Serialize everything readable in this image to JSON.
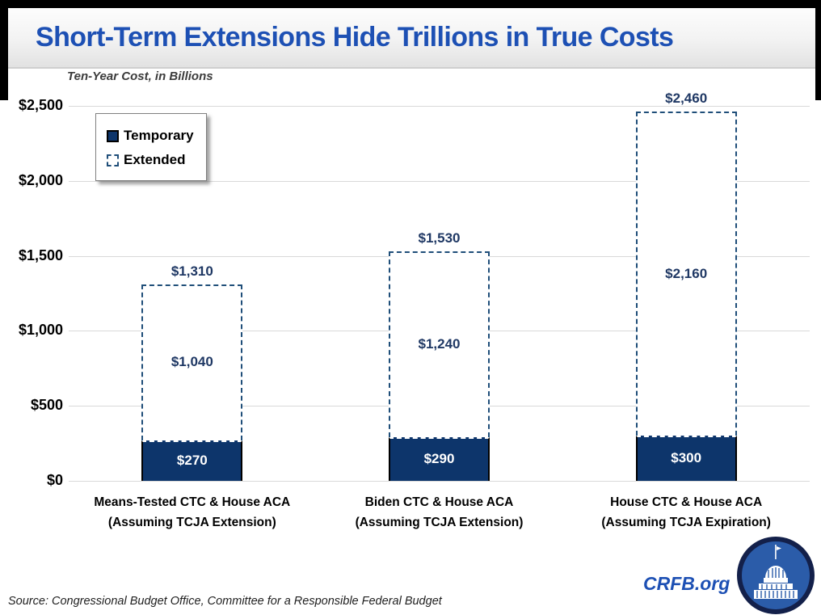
{
  "header": {
    "title": "Short-Term Extensions Hide Trillions in True Costs"
  },
  "chart": {
    "note": "Ten-Year Cost, in Billions"
  },
  "chart_data": {
    "type": "bar",
    "stacked": true,
    "title": "Short-Term Extensions Hide Trillions in True Costs",
    "ylabel": "Ten-Year Cost, in Billions",
    "ylim": [
      0,
      2500
    ],
    "grid": true,
    "legend_position": "upper-left",
    "categories": [
      [
        "Means-Tested CTC & House ACA",
        "(Assuming TCJA Extension)"
      ],
      [
        "Biden CTC & House ACA",
        "(Assuming TCJA Extension)"
      ],
      [
        "House CTC & House ACA",
        "(Assuming TCJA Expiration)"
      ]
    ],
    "series": [
      {
        "name": "Temporary",
        "style": "solid",
        "values": [
          270,
          290,
          300
        ]
      },
      {
        "name": "Extended",
        "style": "dashed",
        "values": [
          1040,
          1240,
          2160
        ]
      }
    ],
    "totals": [
      1310,
      1530,
      2460
    ],
    "yticks": [
      {
        "value": 0,
        "label": "$0"
      },
      {
        "value": 500,
        "label": "$500"
      },
      {
        "value": 1000,
        "label": "$1,000"
      },
      {
        "value": 1500,
        "label": "$1,500"
      },
      {
        "value": 2000,
        "label": "$2,000"
      },
      {
        "value": 2500,
        "label": "$2,500"
      }
    ],
    "legend": [
      {
        "label": "Temporary",
        "style": "solid"
      },
      {
        "label": "Extended",
        "style": "dashed"
      }
    ]
  },
  "footer": {
    "source": "Source: Congressional Budget Office, Committee for a Responsible Federal Budget",
    "brand": "CRFB.org"
  },
  "colors": {
    "title_blue": "#1d50b4",
    "bar_navy": "#0d356b",
    "dashed_navy": "#1f4e79",
    "label_navy": "#1f3864",
    "gridline": "#d9d9d9",
    "logo_blue": "#2b5ca9",
    "logo_ring": "#13204a"
  }
}
